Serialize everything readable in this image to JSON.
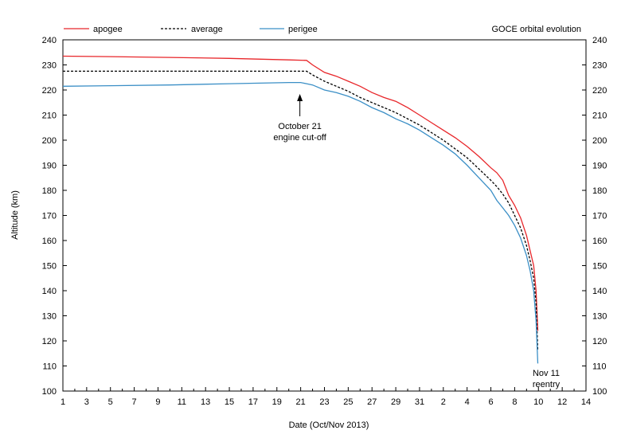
{
  "chart_data": {
    "type": "line",
    "title": "GOCE orbital evolution",
    "xlabel": "Date (Oct/Nov 2013)",
    "ylabel": "Altitude (km)",
    "x_tick_labels": [
      "1",
      "3",
      "5",
      "7",
      "9",
      "11",
      "13",
      "15",
      "17",
      "19",
      "21",
      "23",
      "25",
      "27",
      "29",
      "31",
      "2",
      "4",
      "6",
      "8",
      "10",
      "12",
      "14"
    ],
    "y_ticks": [
      100,
      110,
      120,
      130,
      140,
      150,
      160,
      170,
      180,
      190,
      200,
      210,
      220,
      230,
      240
    ],
    "ylim": [
      100,
      240
    ],
    "grid": false,
    "legend_position": "top",
    "series": [
      {
        "name": "apogee",
        "color": "#e8262a",
        "dash": "solid",
        "x": [
          1,
          5,
          10,
          15,
          20,
          21.5,
          22,
          23,
          24,
          25,
          26,
          27,
          28,
          29,
          30,
          31,
          32,
          33,
          34,
          35,
          36,
          37,
          37.5,
          38,
          38.5,
          39,
          39.5,
          40,
          40.3,
          40.6,
          40.8,
          40.95
        ],
        "y": [
          233.5,
          233.3,
          233,
          232.6,
          232,
          231.8,
          230,
          227,
          225.5,
          223.5,
          221.5,
          219,
          217,
          215.5,
          213,
          210,
          207,
          204,
          201,
          197.5,
          193.5,
          189,
          187,
          184,
          178,
          174,
          169,
          162,
          156,
          150,
          140,
          124
        ]
      },
      {
        "name": "average",
        "color": "#000000",
        "dash": "dashed",
        "x": [
          1,
          5,
          10,
          15,
          20,
          21.5,
          22,
          23,
          24,
          25,
          26,
          27,
          28,
          29,
          30,
          31,
          32,
          33,
          34,
          35,
          36,
          37,
          37.5,
          38,
          38.5,
          39,
          39.5,
          40,
          40.3,
          40.6,
          40.8,
          40.95
        ],
        "y": [
          227.5,
          227.5,
          227.5,
          227.5,
          227.5,
          227.5,
          226,
          223.5,
          221.5,
          219.5,
          217,
          215,
          213,
          211,
          208.5,
          206,
          203,
          200,
          196.5,
          193,
          188.5,
          184,
          181.5,
          178.5,
          175,
          170,
          165,
          158,
          152,
          145,
          135,
          116
        ]
      },
      {
        "name": "perigee",
        "color": "#3b8fc6",
        "dash": "solid",
        "x": [
          1,
          5,
          10,
          15,
          20,
          21,
          21.5,
          22,
          23,
          24,
          25,
          26,
          27,
          28,
          29,
          30,
          31,
          32,
          33,
          34,
          35,
          36,
          37,
          37.5,
          38,
          38.5,
          39,
          39.5,
          40,
          40.3,
          40.6,
          40.8,
          40.95
        ],
        "y": [
          221.5,
          221.7,
          222,
          222.5,
          223,
          223,
          222.5,
          222,
          220,
          219,
          217.5,
          215.5,
          213,
          211,
          208.5,
          206.5,
          204,
          201,
          198,
          194.5,
          190,
          185,
          180,
          176,
          173,
          170,
          166,
          161,
          154,
          148,
          140,
          128,
          111
        ]
      }
    ],
    "annotations": [
      {
        "lines": [
          "October 21",
          "engine cut-off"
        ],
        "x": 21,
        "arrow_to_y": 218,
        "text_y": 208
      },
      {
        "lines": [
          "Nov 11",
          "reentry"
        ],
        "x": 41,
        "text_y": 110
      }
    ]
  }
}
